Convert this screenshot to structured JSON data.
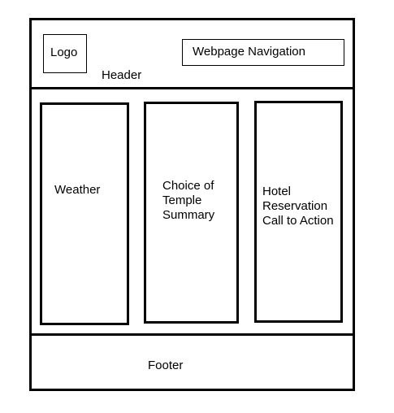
{
  "header": {
    "logo_label": "Logo",
    "navigation_label": "Webpage Navigation",
    "header_label": "Header"
  },
  "columns": [
    {
      "label": "Weather"
    },
    {
      "label": "Choice of Temple Summary"
    },
    {
      "label": "Hotel Reservation Call to Action"
    }
  ],
  "footer": {
    "label": "Footer"
  }
}
